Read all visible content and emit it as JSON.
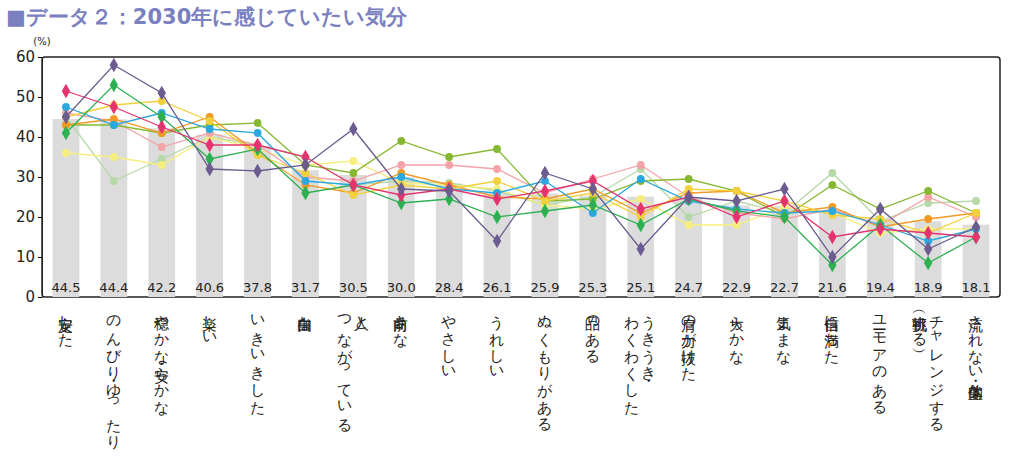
{
  "chart_data": {
    "type": "bar",
    "title": "■データ２：2030年に感じていたい気分",
    "ylabel": "(%)",
    "categories": [
      "安定した",
      "のんびり・ゆったり",
      "穏やかな・安らかな",
      "楽しい",
      "いきいきした",
      "自由な",
      "人と\nつながっている",
      "前向きな",
      "やさしい",
      "うれしい",
      "ぬくもりがある",
      "品のある",
      "うきうき・\nわくわくした",
      "肩の力が抜けた",
      "大らかな",
      "気ままな",
      "自信に満ちた",
      "ユーモアのある",
      "チャレンジする\n（挑戦する）",
      "流されない・主体的な"
    ],
    "ylim": [
      0,
      60
    ],
    "yticks": [
      0,
      10,
      20,
      30,
      40,
      50,
      60
    ],
    "grid": false,
    "data_labels": true,
    "series": [
      {
        "type": "bar",
        "color": "#dcdcdc",
        "values": [
          44.5,
          44.4,
          42.2,
          40.6,
          37.8,
          31.7,
          30.5,
          30.0,
          28.4,
          26.1,
          25.9,
          25.3,
          25.1,
          24.7,
          22.9,
          22.7,
          21.6,
          19.4,
          18.9,
          18.1
        ],
        "value_labels": [
          "44.5",
          "44.4",
          "42.2",
          "40.6",
          "37.8",
          "31.7",
          "30.5",
          "30.0",
          "28.4",
          "26.1",
          "25.9",
          "25.3",
          "25.1",
          "24.7",
          "22.9",
          "22.7",
          "21.6",
          "19.4",
          "18.9",
          "18.1"
        ]
      },
      {
        "type": "line",
        "color": "#b6d8a8",
        "marker": "circle",
        "values": [
          45,
          29,
          34.5,
          40,
          38,
          35,
          28,
          29,
          28.5,
          26.5,
          23,
          25,
          32,
          20,
          24,
          21,
          31,
          19,
          23.5,
          24
        ]
      },
      {
        "type": "line",
        "color": "#f6ef7e",
        "marker": "circle",
        "values": [
          36,
          35,
          33,
          40,
          37,
          33,
          34,
          28.5,
          28,
          27,
          23,
          22,
          24.5,
          18,
          18,
          22.5,
          21,
          16,
          17,
          17
        ]
      },
      {
        "type": "line",
        "color": "#f4a3a8",
        "marker": "circle",
        "values": [
          46,
          44,
          37.5,
          41,
          38,
          30,
          29,
          33,
          33,
          32,
          26,
          29.5,
          33,
          25,
          21,
          19.5,
          22,
          18,
          25,
          20
        ]
      },
      {
        "type": "line",
        "color": "#86b832",
        "marker": "circle",
        "values": [
          43,
          43,
          41,
          43,
          43.5,
          33,
          31,
          39,
          35,
          37,
          24,
          24.5,
          29,
          29.5,
          26.5,
          20,
          28,
          22,
          26.5,
          21
        ]
      },
      {
        "type": "line",
        "color": "#f39a26",
        "marker": "circle",
        "values": [
          43,
          44.5,
          41,
          45,
          36,
          28,
          26,
          31,
          28,
          25,
          24.5,
          27,
          21,
          26,
          26.5,
          21,
          22.5,
          17.5,
          19.5,
          21
        ]
      },
      {
        "type": "line",
        "color": "#f2d13b",
        "marker": "circle",
        "values": [
          45,
          48,
          49,
          44,
          35.5,
          31,
          25.5,
          28,
          27,
          29,
          24,
          26,
          20,
          27,
          26.5,
          24,
          20.5,
          19.5,
          16,
          21
        ]
      },
      {
        "type": "line",
        "color": "#2aa8e0",
        "marker": "circle",
        "values": [
          47.5,
          43,
          46,
          42,
          41,
          29,
          28,
          30,
          27,
          26,
          29,
          21,
          29.5,
          24,
          22,
          21,
          21.5,
          18,
          14,
          17
        ]
      },
      {
        "type": "line",
        "color": "#2db052",
        "marker": "diamond",
        "values": [
          41,
          53,
          45,
          34.5,
          37,
          26,
          28,
          23.5,
          24.5,
          20,
          21.5,
          23,
          18,
          24.5,
          21.5,
          20,
          8,
          18,
          8.5,
          15
        ]
      },
      {
        "type": "line",
        "color": "#e5336d",
        "marker": "diamond",
        "values": [
          51.5,
          47.5,
          42.5,
          38,
          38,
          35,
          28,
          25.5,
          27,
          24.5,
          26.5,
          29,
          22,
          25,
          20,
          24,
          15,
          17,
          16,
          15
        ]
      },
      {
        "type": "line",
        "color": "#6b5b8f",
        "marker": "diamond",
        "values": [
          45,
          58,
          51,
          32,
          31.5,
          33,
          42,
          27,
          26.5,
          14,
          31,
          27,
          12,
          25,
          24,
          27,
          10,
          22,
          12,
          17.5
        ]
      }
    ]
  }
}
